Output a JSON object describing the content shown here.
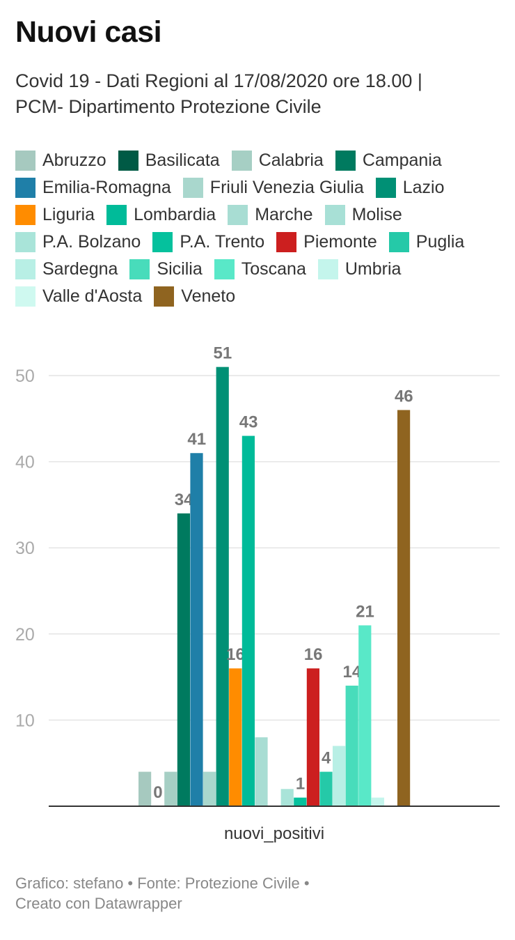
{
  "header": {
    "title": "Nuovi casi",
    "subtitle_line1": "Covid 19 - Dati Regioni al 17/08/2020 ore 18.00 |",
    "subtitle_line2": "PCM- Dipartimento Protezione Civile"
  },
  "footer": {
    "line1": "Grafico: stefano • Fonte: Protezione Civile •",
    "line2": "Creato con Datawrapper"
  },
  "chart_data": {
    "type": "bar",
    "categories": [
      "nuovi_positivi"
    ],
    "xlabel": "nuovi_positivi",
    "ylabel": "",
    "ylim": [
      0,
      55
    ],
    "yticks": [
      10,
      20,
      30,
      40,
      50
    ],
    "grid": true,
    "legend_position": "top",
    "series": [
      {
        "name": "Abruzzo",
        "value": 4,
        "color": "#a6c9bf",
        "label": ""
      },
      {
        "name": "Basilicata",
        "value": 0,
        "color": "#005a45",
        "label": "0"
      },
      {
        "name": "Calabria",
        "value": 4,
        "color": "#a6cfc4",
        "label": ""
      },
      {
        "name": "Campania",
        "value": 34,
        "color": "#007a5f",
        "label": "34"
      },
      {
        "name": "Emilia-Romagna",
        "value": 41,
        "color": "#1f7fa8",
        "label": "41"
      },
      {
        "name": "Friuli Venezia Giulia",
        "value": 4,
        "color": "#a9d7cd",
        "label": ""
      },
      {
        "name": "Lazio",
        "value": 51,
        "color": "#009075",
        "label": "51"
      },
      {
        "name": "Liguria",
        "value": 16,
        "color": "#ff8c00",
        "label": "16"
      },
      {
        "name": "Lombardia",
        "value": 43,
        "color": "#00bb99",
        "label": "43"
      },
      {
        "name": "Marche",
        "value": 8,
        "color": "#a8ddd3",
        "label": ""
      },
      {
        "name": "Molise",
        "value": 0,
        "color": "#a8e0d6",
        "label": ""
      },
      {
        "name": "P.A. Bolzano",
        "value": 2,
        "color": "#a9e4d9",
        "label": ""
      },
      {
        "name": "P.A. Trento",
        "value": 1,
        "color": "#05c19d",
        "label": "1"
      },
      {
        "name": "Piemonte",
        "value": 16,
        "color": "#cc1f1f",
        "label": "16"
      },
      {
        "name": "Puglia",
        "value": 4,
        "color": "#25c9a8",
        "label": "4"
      },
      {
        "name": "Sardegna",
        "value": 7,
        "color": "#b8efe5",
        "label": ""
      },
      {
        "name": "Sicilia",
        "value": 14,
        "color": "#48dcbb",
        "label": "14"
      },
      {
        "name": "Toscana",
        "value": 21,
        "color": "#59e8c8",
        "label": "21"
      },
      {
        "name": "Umbria",
        "value": 1,
        "color": "#c4f5ec",
        "label": ""
      },
      {
        "name": "Valle d'Aosta",
        "value": 0,
        "color": "#cff9f0",
        "label": ""
      },
      {
        "name": "Veneto",
        "value": 46,
        "color": "#8f6420",
        "label": "46"
      }
    ]
  }
}
